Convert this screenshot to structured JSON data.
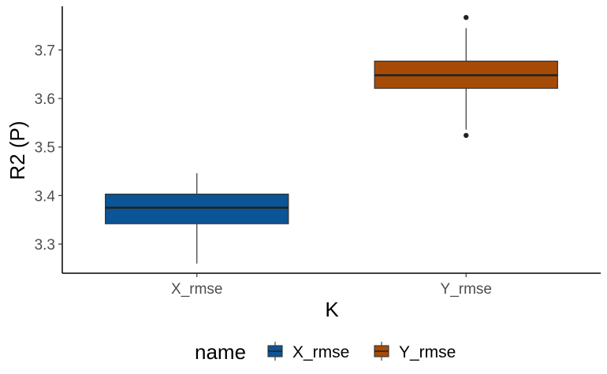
{
  "chart_data": {
    "type": "boxplot",
    "xlabel": "K",
    "ylabel": "R2 (P)",
    "ylim": [
      3.24,
      3.79
    ],
    "yticks": [
      3.3,
      3.4,
      3.5,
      3.6,
      3.7
    ],
    "ytick_labels": [
      "3.3",
      "3.4",
      "3.5",
      "3.6",
      "3.7"
    ],
    "categories": [
      "X_rmse",
      "Y_rmse"
    ],
    "series": [
      {
        "name": "X_rmse",
        "color": "#0b5496",
        "min": 3.26,
        "q1": 3.342,
        "median": 3.375,
        "q3": 3.403,
        "max": 3.446,
        "outliers": []
      },
      {
        "name": "Y_rmse",
        "color": "#a64b06",
        "min": 3.536,
        "q1": 3.621,
        "median": 3.648,
        "q3": 3.677,
        "max": 3.745,
        "outliers": [
          3.767,
          3.524
        ]
      }
    ],
    "grid": false,
    "legend": {
      "title": "name",
      "placement": "bottom"
    }
  }
}
